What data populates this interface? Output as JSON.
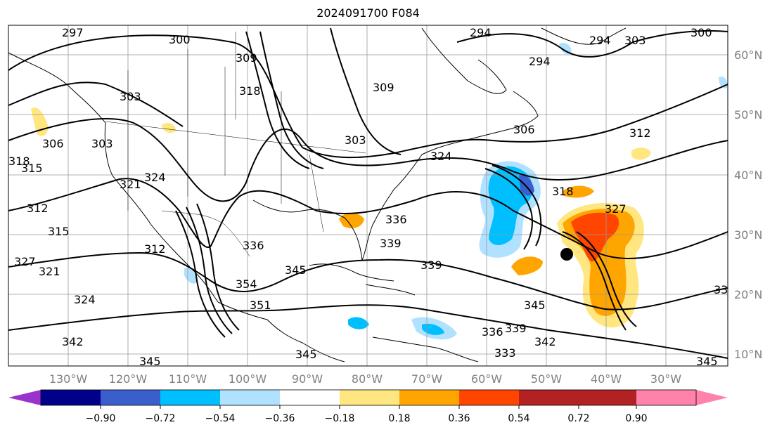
{
  "title": "2024091700 F084",
  "lat_labels": [
    "60°N",
    "50°N",
    "40°N",
    "30°N",
    "20°N",
    "10°N"
  ],
  "lon_labels": [
    "130°W",
    "120°W",
    "110°W",
    "100°W",
    "90°W",
    "80°W",
    "70°W",
    "60°W",
    "50°W",
    "40°W",
    "30°W"
  ],
  "colorbar": {
    "colors": [
      "#9a32cd",
      "#00008b",
      "#3a5fcd",
      "#00bfff",
      "#b0e2ff",
      "#ffffff",
      "#ffe680",
      "#ffa500",
      "#ff4500",
      "#b22222",
      "#ff82ab"
    ],
    "ticks": [
      "−0.90",
      "−0.72",
      "−0.54",
      "−0.36",
      "−0.18",
      "0.18",
      "0.36",
      "0.54",
      "0.72",
      "0.90"
    ]
  },
  "contour_labels": [
    "297",
    "300",
    "309",
    "294",
    "294",
    "303",
    "300",
    "294",
    "303",
    "318",
    "309",
    "303",
    "306",
    "312",
    "306",
    "318",
    "315",
    "303",
    "324",
    "324",
    "321",
    "312",
    "315",
    "312",
    "327",
    "336",
    "339",
    "318",
    "336",
    "339",
    "345",
    "345",
    "354",
    "351",
    "321",
    "324",
    "327",
    "342",
    "345",
    "345",
    "336",
    "339",
    "342",
    "333",
    "345",
    "33"
  ]
}
